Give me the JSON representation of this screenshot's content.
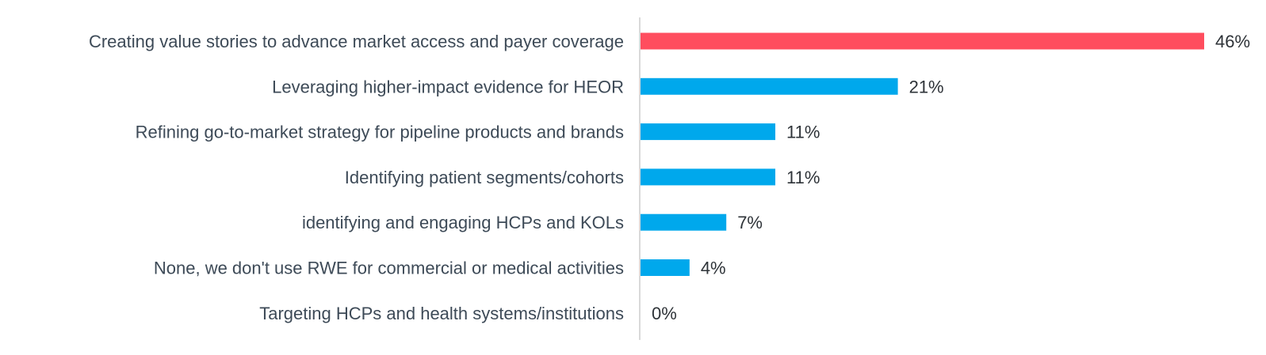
{
  "chart_data": {
    "type": "bar",
    "orientation": "horizontal",
    "title": "",
    "xlabel": "",
    "ylabel": "",
    "xlim": [
      0,
      46
    ],
    "grid": false,
    "legend": "none",
    "categories": [
      "Creating value stories to advance market access and payer coverage",
      "Leveraging higher-impact evidence for HEOR",
      "Refining go-to-market strategy for pipeline products and brands",
      "Identifying patient segments/cohorts",
      "identifying and engaging HCPs and KOLs",
      "None, we don't use RWE for commercial or medical activities",
      "Targeting HCPs and health systems/institutions"
    ],
    "values": [
      46,
      21,
      11,
      11,
      7,
      4,
      0
    ],
    "value_labels": [
      "46%",
      "21%",
      "11%",
      "11%",
      "7%",
      "4%",
      "0%"
    ],
    "colors": {
      "highlight": "#ff4d5e",
      "default": "#00a8ec",
      "axis": "#d9d9d9",
      "label_text": "#3d4a57",
      "value_text": "#2e3338"
    },
    "highlight_index": 0
  }
}
